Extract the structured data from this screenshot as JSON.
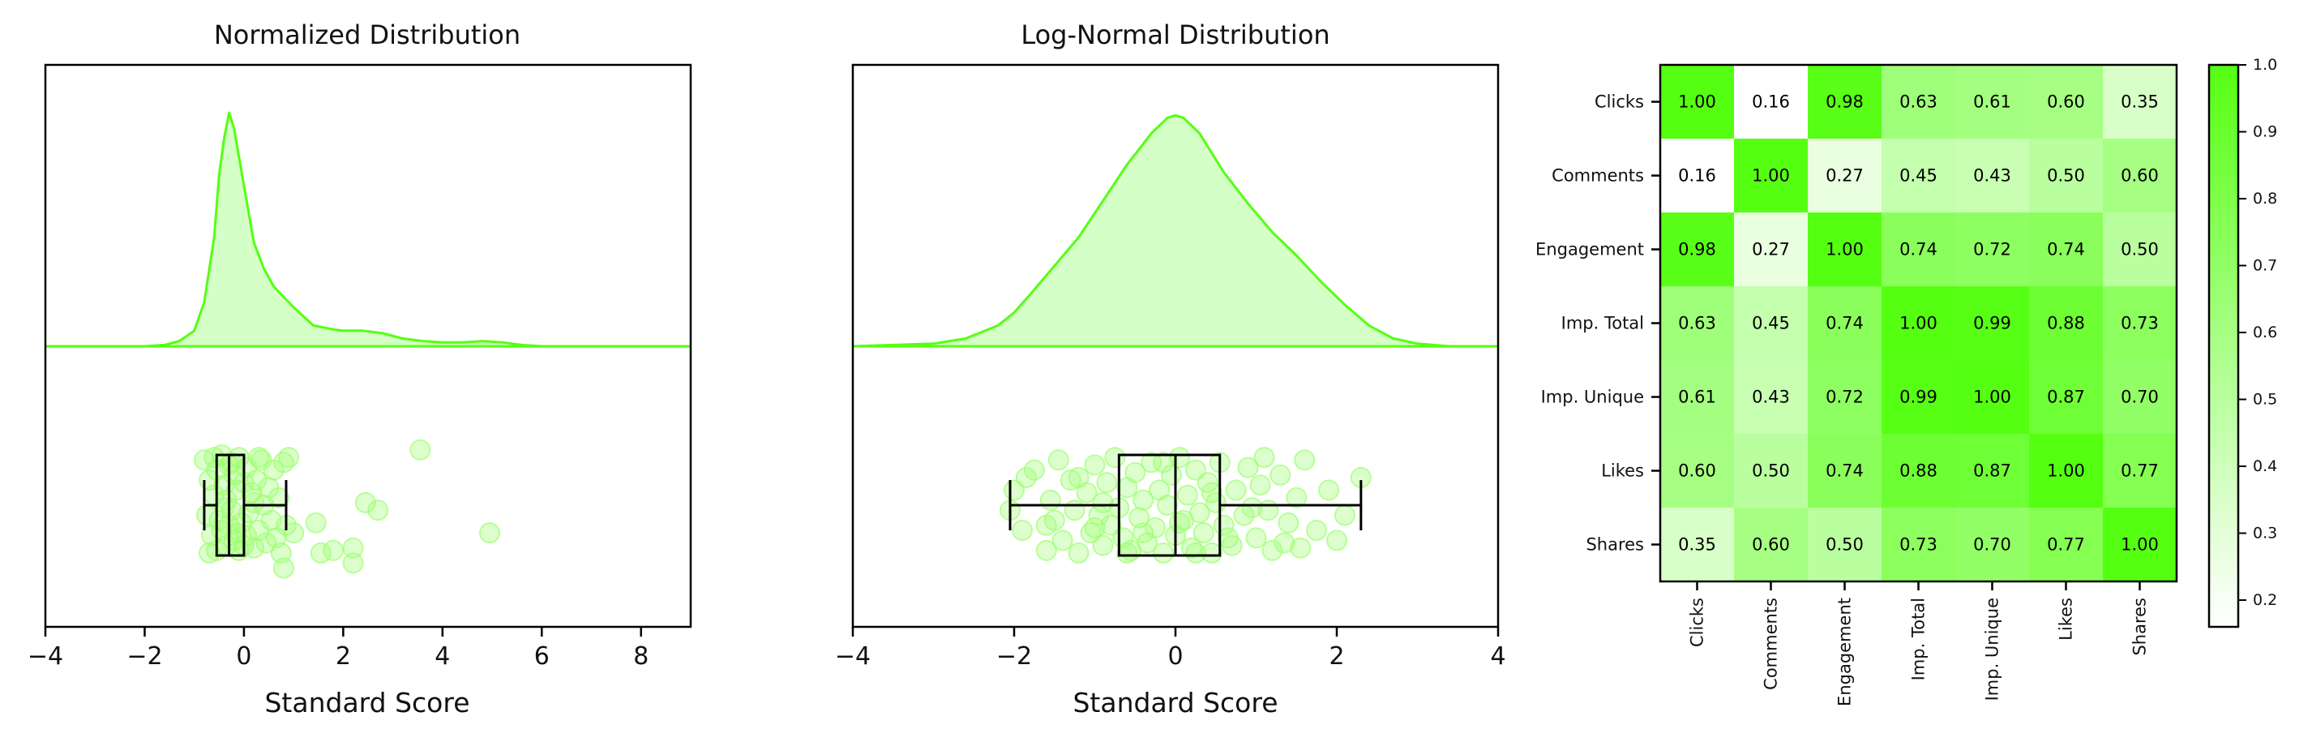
{
  "colors": {
    "accent": "#55ff11",
    "fill": "#d4ffc6",
    "point": "#9eff72",
    "box": "#000000"
  },
  "chart_data": [
    {
      "type": "density_box_strip",
      "title": "Normalized Distribution",
      "xlabel": "Standard Score",
      "xlim": [
        -4,
        9
      ],
      "xticks": [
        -4,
        -2,
        0,
        2,
        4,
        6,
        8
      ],
      "xtick_labels": [
        "−4",
        "−2",
        "0",
        "2",
        "4",
        "6",
        "8"
      ],
      "density": {
        "x": [
          -4,
          -2,
          -1.6,
          -1.3,
          -1.0,
          -0.8,
          -0.6,
          -0.5,
          -0.4,
          -0.3,
          -0.2,
          0,
          0.2,
          0.4,
          0.6,
          1.0,
          1.4,
          1.8,
          2.0,
          2.4,
          2.8,
          3.2,
          3.6,
          4.0,
          4.4,
          4.8,
          5.2,
          5.6,
          6.0,
          9
        ],
        "y": [
          0,
          0,
          0.005,
          0.02,
          0.06,
          0.17,
          0.42,
          0.66,
          0.8,
          0.9,
          0.84,
          0.62,
          0.4,
          0.3,
          0.23,
          0.15,
          0.08,
          0.065,
          0.06,
          0.06,
          0.05,
          0.03,
          0.02,
          0.015,
          0.015,
          0.02,
          0.015,
          0.005,
          0,
          0
        ]
      },
      "box": {
        "q1": -0.55,
        "median": -0.3,
        "q3": 0.0,
        "whisker_low": -0.8,
        "whisker_high": 0.85
      },
      "points": [
        [
          -0.8,
          -0.9
        ],
        [
          -0.75,
          0.2
        ],
        [
          -0.7,
          -0.5
        ],
        [
          -0.65,
          0.6
        ],
        [
          -0.6,
          -0.2
        ],
        [
          -0.55,
          0.9
        ],
        [
          -0.55,
          -0.7
        ],
        [
          -0.5,
          0.3
        ],
        [
          -0.45,
          -1.0
        ],
        [
          -0.45,
          0.5
        ],
        [
          -0.4,
          -0.4
        ],
        [
          -0.35,
          0.8
        ],
        [
          -0.35,
          -0.1
        ],
        [
          -0.3,
          -0.8
        ],
        [
          -0.3,
          0.4
        ],
        [
          -0.25,
          0.1
        ],
        [
          -0.2,
          -0.6
        ],
        [
          -0.2,
          0.7
        ],
        [
          -0.15,
          -0.3
        ],
        [
          -0.1,
          0.9
        ],
        [
          -0.1,
          -0.95
        ],
        [
          -0.05,
          0.35
        ],
        [
          0.0,
          -0.45
        ],
        [
          0.05,
          0.6
        ],
        [
          0.05,
          -0.75
        ],
        [
          0.1,
          0.15
        ],
        [
          0.15,
          -0.25
        ],
        [
          0.2,
          0.85
        ],
        [
          0.25,
          -0.5
        ],
        [
          0.3,
          0.5
        ],
        [
          0.35,
          -0.9
        ],
        [
          0.4,
          0.0
        ],
        [
          0.45,
          0.75
        ],
        [
          0.5,
          -0.35
        ],
        [
          0.55,
          0.3
        ],
        [
          0.6,
          -0.7
        ],
        [
          0.65,
          0.65
        ],
        [
          0.7,
          -0.15
        ],
        [
          0.75,
          0.95
        ],
        [
          0.8,
          -0.85
        ],
        [
          0.85,
          0.4
        ],
        [
          0.9,
          -0.95
        ],
        [
          -0.7,
          0.95
        ],
        [
          -0.6,
          -0.95
        ],
        [
          -0.4,
          0.05
        ],
        [
          -0.25,
          -0.85
        ],
        [
          -0.15,
          0.55
        ],
        [
          0.0,
          0.8
        ],
        [
          0.2,
          -0.05
        ],
        [
          0.3,
          -0.95
        ],
        [
          0.8,
          1.25
        ],
        [
          1.0,
          0.55
        ],
        [
          1.45,
          0.35
        ],
        [
          1.55,
          0.95
        ],
        [
          1.8,
          0.9
        ],
        [
          2.2,
          0.85
        ],
        [
          2.2,
          1.15
        ],
        [
          2.45,
          -0.05
        ],
        [
          2.7,
          0.1
        ],
        [
          3.55,
          -1.1
        ],
        [
          4.95,
          0.55
        ]
      ]
    },
    {
      "type": "density_box_strip",
      "title": "Log-Normal Distribution",
      "xlabel": "Standard Score",
      "xlim": [
        -4,
        4
      ],
      "xticks": [
        -4,
        -2,
        0,
        2,
        4
      ],
      "xtick_labels": [
        "−4",
        "−2",
        "0",
        "2",
        "4"
      ],
      "density": {
        "x": [
          -4,
          -3,
          -2.6,
          -2.2,
          -2.0,
          -1.8,
          -1.5,
          -1.2,
          -0.9,
          -0.6,
          -0.3,
          -0.1,
          0.0,
          0.1,
          0.3,
          0.6,
          0.9,
          1.2,
          1.5,
          1.8,
          2.1,
          2.4,
          2.7,
          3.0,
          3.4,
          4
        ],
        "y": [
          0,
          0.01,
          0.03,
          0.08,
          0.13,
          0.2,
          0.31,
          0.42,
          0.56,
          0.7,
          0.82,
          0.88,
          0.89,
          0.88,
          0.82,
          0.67,
          0.55,
          0.44,
          0.35,
          0.25,
          0.16,
          0.08,
          0.03,
          0.01,
          0,
          0
        ]
      },
      "box": {
        "q1": -0.7,
        "median": 0.0,
        "q3": 0.55,
        "whisker_low": -2.05,
        "whisker_high": 2.3
      },
      "points": [
        [
          -2.05,
          0.1
        ],
        [
          -2.0,
          -0.3
        ],
        [
          -1.9,
          0.5
        ],
        [
          -1.75,
          -0.7
        ],
        [
          -1.6,
          0.9
        ],
        [
          -1.55,
          -0.1
        ],
        [
          -1.5,
          0.3
        ],
        [
          -1.45,
          -0.9
        ],
        [
          -1.4,
          0.7
        ],
        [
          -1.3,
          -0.5
        ],
        [
          -1.25,
          0.1
        ],
        [
          -1.2,
          0.95
        ],
        [
          -1.1,
          -0.25
        ],
        [
          -1.05,
          0.55
        ],
        [
          -1.0,
          -0.8
        ],
        [
          -0.95,
          0.2
        ],
        [
          -0.9,
          0.8
        ],
        [
          -0.85,
          -0.45
        ],
        [
          -0.8,
          0.4
        ],
        [
          -0.75,
          -0.95
        ],
        [
          -0.7,
          0.05
        ],
        [
          -0.65,
          0.65
        ],
        [
          -0.6,
          -0.35
        ],
        [
          -0.55,
          0.9
        ],
        [
          -0.5,
          -0.65
        ],
        [
          -0.45,
          0.25
        ],
        [
          -0.4,
          -0.1
        ],
        [
          -0.35,
          0.75
        ],
        [
          -0.3,
          -0.85
        ],
        [
          -0.25,
          0.45
        ],
        [
          -0.2,
          -0.3
        ],
        [
          -0.15,
          0.95
        ],
        [
          -0.1,
          0.0
        ],
        [
          -0.05,
          -0.6
        ],
        [
          0.0,
          0.6
        ],
        [
          0.05,
          -0.95
        ],
        [
          0.1,
          0.3
        ],
        [
          0.15,
          -0.2
        ],
        [
          0.2,
          0.85
        ],
        [
          0.25,
          -0.7
        ],
        [
          0.3,
          0.15
        ],
        [
          0.35,
          0.55
        ],
        [
          0.4,
          -0.45
        ],
        [
          0.45,
          0.95
        ],
        [
          0.5,
          -0.05
        ],
        [
          0.55,
          -0.85
        ],
        [
          0.6,
          0.4
        ],
        [
          0.7,
          0.8
        ],
        [
          0.75,
          -0.3
        ],
        [
          0.85,
          0.2
        ],
        [
          0.9,
          -0.75
        ],
        [
          1.0,
          0.65
        ],
        [
          1.05,
          -0.4
        ],
        [
          1.15,
          0.1
        ],
        [
          1.2,
          0.9
        ],
        [
          1.3,
          -0.6
        ],
        [
          1.4,
          0.35
        ],
        [
          1.5,
          -0.15
        ],
        [
          1.55,
          0.85
        ],
        [
          1.6,
          -0.9
        ],
        [
          1.75,
          0.5
        ],
        [
          1.9,
          -0.3
        ],
        [
          2.0,
          0.7
        ],
        [
          2.1,
          0.2
        ],
        [
          2.3,
          -0.55
        ],
        [
          -1.6,
          0.4
        ],
        [
          -1.2,
          -0.55
        ],
        [
          -0.9,
          -0.05
        ],
        [
          -0.4,
          0.55
        ],
        [
          0.05,
          0.35
        ],
        [
          0.45,
          -0.25
        ],
        [
          0.95,
          0.05
        ],
        [
          1.35,
          0.75
        ],
        [
          -0.6,
          0.95
        ],
        [
          0.25,
          0.95
        ],
        [
          -1.85,
          -0.55
        ],
        [
          1.1,
          -0.95
        ],
        [
          -0.15,
          -0.85
        ],
        [
          0.65,
          0.65
        ],
        [
          -1.0,
          0.45
        ]
      ]
    },
    {
      "type": "heatmap",
      "labels": [
        "Clicks",
        "Comments",
        "Engagement",
        "Imp. Total",
        "Imp. Unique",
        "Likes",
        "Shares"
      ],
      "values": [
        [
          1.0,
          0.16,
          0.98,
          0.63,
          0.61,
          0.6,
          0.35
        ],
        [
          0.16,
          1.0,
          0.27,
          0.45,
          0.43,
          0.5,
          0.6
        ],
        [
          0.98,
          0.27,
          1.0,
          0.74,
          0.72,
          0.74,
          0.5
        ],
        [
          0.63,
          0.45,
          0.74,
          1.0,
          0.99,
          0.88,
          0.73
        ],
        [
          0.61,
          0.43,
          0.72,
          0.99,
          1.0,
          0.87,
          0.7
        ],
        [
          0.6,
          0.5,
          0.74,
          0.88,
          0.87,
          1.0,
          0.77
        ],
        [
          0.35,
          0.6,
          0.5,
          0.73,
          0.7,
          0.77,
          1.0
        ]
      ],
      "value_labels": [
        [
          "1.00",
          "0.16",
          "0.98",
          "0.63",
          "0.61",
          "0.60",
          "0.35"
        ],
        [
          "0.16",
          "1.00",
          "0.27",
          "0.45",
          "0.43",
          "0.50",
          "0.60"
        ],
        [
          "0.98",
          "0.27",
          "1.00",
          "0.74",
          "0.72",
          "0.74",
          "0.50"
        ],
        [
          "0.63",
          "0.45",
          "0.74",
          "1.00",
          "0.99",
          "0.88",
          "0.73"
        ],
        [
          "0.61",
          "0.43",
          "0.72",
          "0.99",
          "1.00",
          "0.87",
          "0.70"
        ],
        [
          "0.60",
          "0.50",
          "0.74",
          "0.88",
          "0.87",
          "1.00",
          "0.77"
        ],
        [
          "0.35",
          "0.60",
          "0.50",
          "0.73",
          "0.70",
          "0.77",
          "1.00"
        ]
      ],
      "colorbar": {
        "range": [
          0.16,
          1.0
        ],
        "ticks": [
          0.2,
          0.3,
          0.4,
          0.5,
          0.6,
          0.7,
          0.8,
          0.9,
          1.0
        ],
        "tick_labels": [
          "0.2",
          "0.3",
          "0.4",
          "0.5",
          "0.6",
          "0.7",
          "0.8",
          "0.9",
          "1.0"
        ],
        "color_low": "#ffffff",
        "color_high": "#55ff11"
      }
    }
  ]
}
